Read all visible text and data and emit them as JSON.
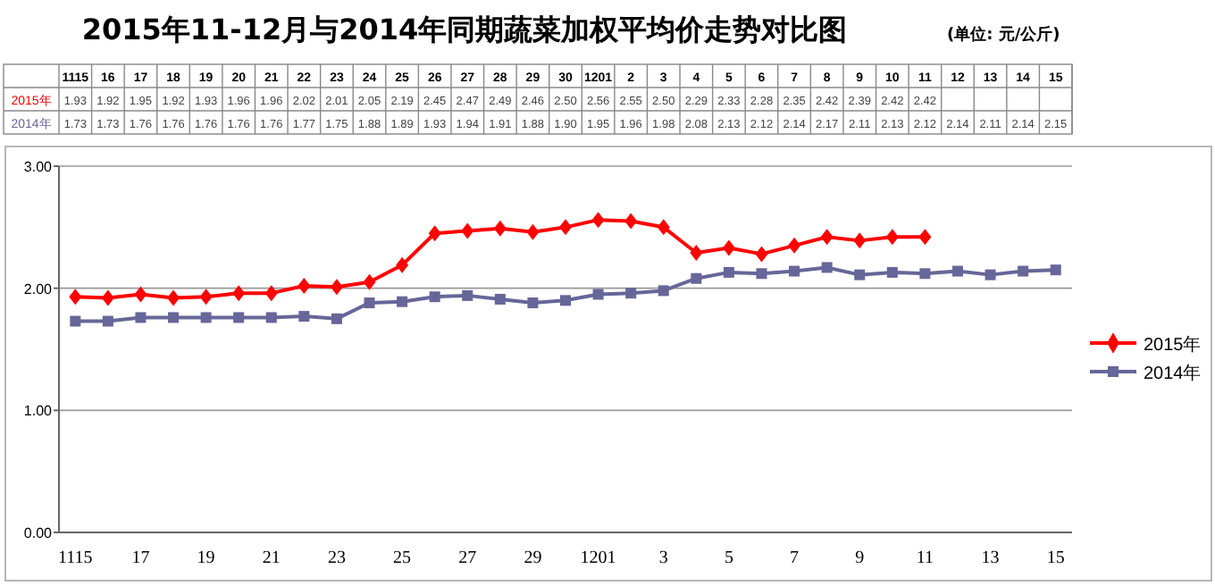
{
  "chart_data": {
    "type": "line",
    "title": "2015年11-12月与2014年同期蔬菜加权平均价走势对比图",
    "subtitle": "(单位: 元/公斤)",
    "categories": [
      "1115",
      "16",
      "17",
      "18",
      "19",
      "20",
      "21",
      "22",
      "23",
      "24",
      "25",
      "26",
      "27",
      "28",
      "29",
      "30",
      "1201",
      "2",
      "3",
      "4",
      "5",
      "6",
      "7",
      "8",
      "9",
      "10",
      "11",
      "12",
      "13",
      "14",
      "15"
    ],
    "series": [
      {
        "name": "2015年",
        "color": "#ff0000",
        "marker": "diamond",
        "values": [
          1.93,
          1.92,
          1.95,
          1.92,
          1.93,
          1.96,
          1.96,
          2.02,
          2.01,
          2.05,
          2.19,
          2.45,
          2.47,
          2.49,
          2.46,
          2.5,
          2.56,
          2.55,
          2.5,
          2.29,
          2.33,
          2.28,
          2.35,
          2.42,
          2.39,
          2.42,
          2.42,
          null,
          null,
          null,
          null
        ],
        "value_labels": [
          "1.93",
          "1.92",
          "1.95",
          "1.92",
          "1.93",
          "1.96",
          "1.96",
          "2.02",
          "2.01",
          "2.05",
          "2.19",
          "2.45",
          "2.47",
          "2.49",
          "2.46",
          "2.50",
          "2.56",
          "2.55",
          "2.50",
          "2.29",
          "2.33",
          "2.28",
          "2.35",
          "2.42",
          "2.39",
          "2.42",
          "2.42",
          null,
          null,
          null,
          null
        ]
      },
      {
        "name": "2014年",
        "color": "#666699",
        "marker": "square",
        "values": [
          1.73,
          1.73,
          1.76,
          1.76,
          1.76,
          1.76,
          1.76,
          1.77,
          1.75,
          1.88,
          1.89,
          1.93,
          1.94,
          1.91,
          1.88,
          1.9,
          1.95,
          1.96,
          1.98,
          2.08,
          2.13,
          2.12,
          2.14,
          2.17,
          2.11,
          2.13,
          2.12,
          2.14,
          2.11,
          2.14,
          2.15
        ],
        "value_labels": [
          "1.73",
          "1.73",
          "1.76",
          "1.76",
          "1.76",
          "1.76",
          "1.76",
          "1.77",
          "1.75",
          "1.88",
          "1.89",
          "1.93",
          "1.94",
          "1.91",
          "1.88",
          "1.90",
          "1.95",
          "1.96",
          "1.98",
          "2.08",
          "2.13",
          "2.12",
          "2.14",
          "2.17",
          "2.11",
          "2.13",
          "2.12",
          "2.14",
          "2.11",
          "2.14",
          "2.15"
        ]
      }
    ],
    "ylim": [
      0,
      3
    ],
    "yticks": [
      {
        "value": 0,
        "label": "0.00"
      },
      {
        "value": 1,
        "label": "1.00"
      },
      {
        "value": 2,
        "label": "2.00"
      },
      {
        "value": 3,
        "label": "3.00"
      }
    ],
    "grid": "y",
    "legend": "right",
    "line_style": "solid"
  }
}
